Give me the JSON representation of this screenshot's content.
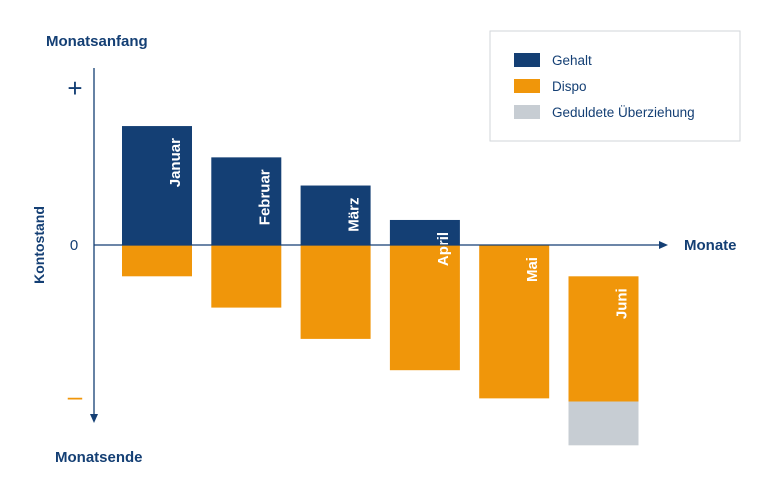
{
  "colors": {
    "gehalt": "#143f74",
    "dispo": "#f0960a",
    "geduldet": "#c7cdd3",
    "axis": "#143f74"
  },
  "chart_data": {
    "type": "bar",
    "stacked": true,
    "xlabel": "Monate",
    "ylabel": "Kontostand",
    "y_top_label": "Monatsanfang",
    "y_bottom_label": "Monatsende",
    "y_tick_labels": [
      "+",
      "0",
      "–"
    ],
    "categories": [
      "Januar",
      "Februar",
      "März",
      "April",
      "Mai",
      "Juni"
    ],
    "series": [
      {
        "name": "Gehalt",
        "values": [
          38,
          28,
          19,
          8,
          0,
          0
        ]
      },
      {
        "name": "Dispo",
        "values": [
          -10,
          -20,
          -30,
          -40,
          -49,
          -40
        ]
      },
      {
        "name": "Geduldete Überziehung",
        "values": [
          0,
          0,
          0,
          0,
          0,
          -14
        ]
      }
    ],
    "offset_start": [
      0,
      0,
      0,
      0,
      0,
      -10
    ],
    "ylim": [
      -58,
      50
    ],
    "legend": [
      "Gehalt",
      "Dispo",
      "Geduldete Überziehung"
    ],
    "legend_position": "top-right",
    "grid": false
  }
}
